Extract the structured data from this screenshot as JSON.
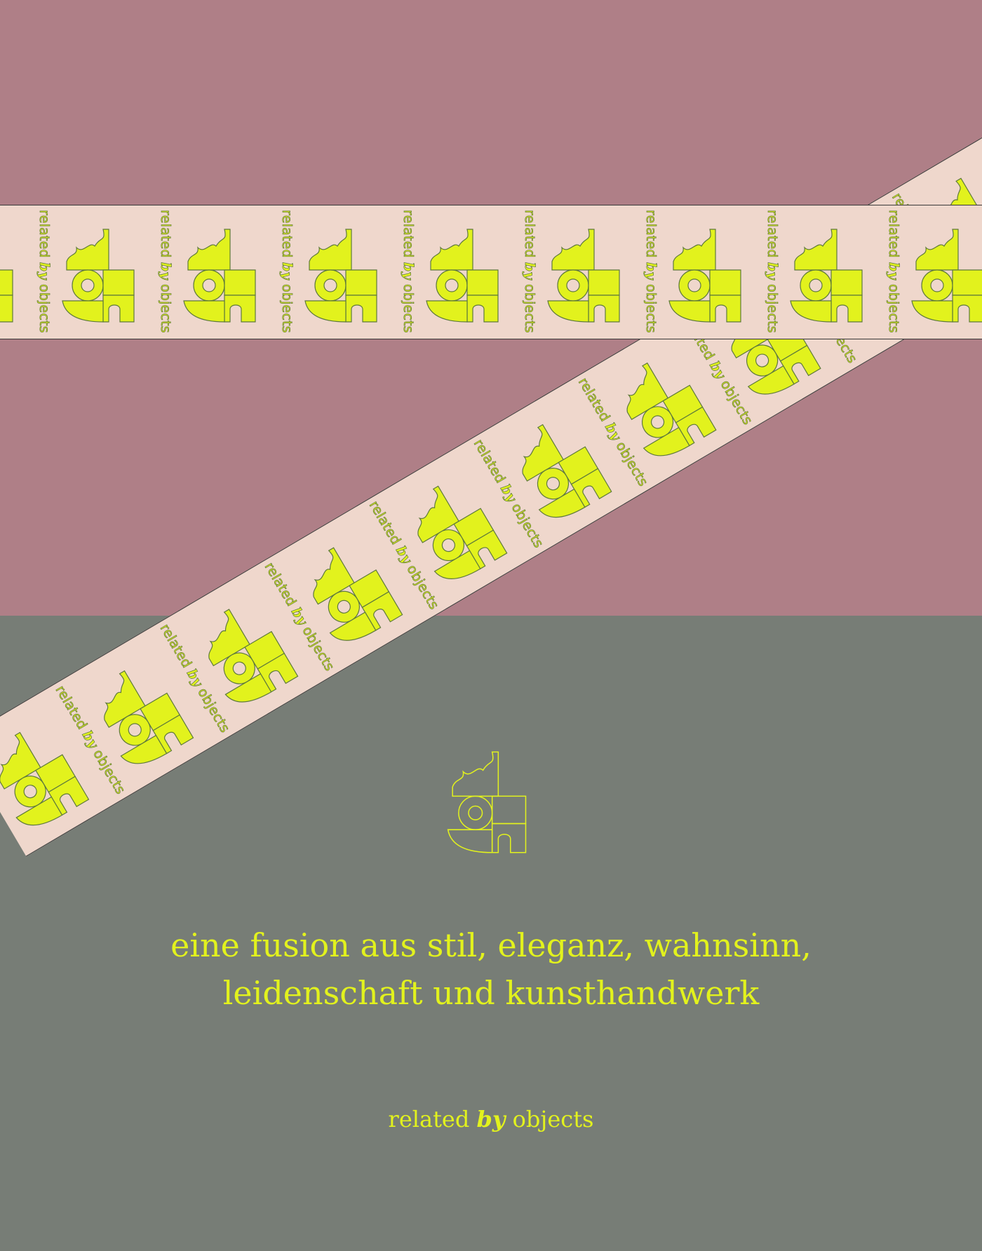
{
  "colors": {
    "mauve": "#af7f87",
    "sage": "#777d76",
    "band": "#efd7cc",
    "neon": "#e2f21d",
    "outline": "#5f7a3b"
  },
  "band_label": {
    "before": "related ",
    "by": "by",
    "after": " objects"
  },
  "tagline": {
    "line1": "eine fusion aus stil, eleganz, wahnsinn,",
    "line2": "leidenschaft und kunsthandwerk"
  },
  "signature": {
    "before": "related ",
    "by": "by",
    "after": " objects"
  },
  "icons": {
    "monogram": "rbo-monogram-icon"
  }
}
